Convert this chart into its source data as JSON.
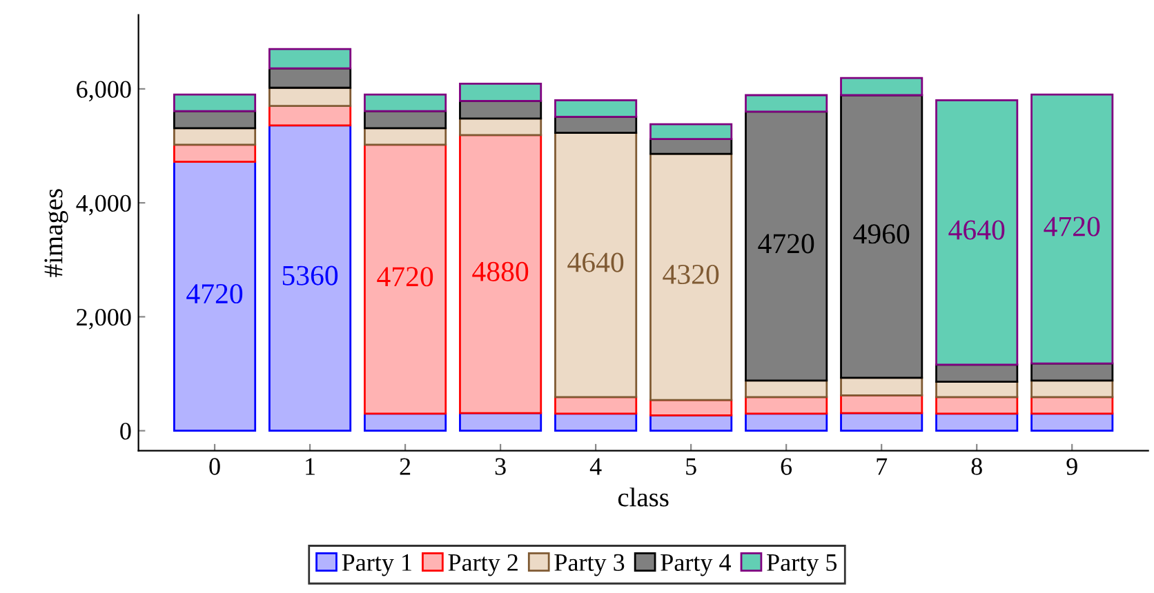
{
  "chart_data": {
    "type": "bar",
    "stacked": true,
    "xlabel": "class",
    "ylabel": "#images",
    "categories": [
      "0",
      "1",
      "2",
      "3",
      "4",
      "5",
      "6",
      "7",
      "8",
      "9"
    ],
    "ylim": [
      -350,
      7300
    ],
    "yticks": [
      {
        "value": 0,
        "label": "0"
      },
      {
        "value": 2000,
        "label": "2,000"
      },
      {
        "value": 4000,
        "label": "4,000"
      },
      {
        "value": 6000,
        "label": "6,000"
      }
    ],
    "grid": false,
    "legend": "bottom",
    "series": [
      {
        "name": "Party 1",
        "color": "#b3b3ff",
        "values": [
          4720,
          5360,
          300,
          310,
          300,
          270,
          300,
          310,
          300,
          300
        ],
        "value_labels": [
          "4720",
          "5360",
          null,
          null,
          null,
          null,
          null,
          null,
          null,
          null
        ]
      },
      {
        "name": "Party 2",
        "color": "#ffb3b3",
        "values": [
          300,
          340,
          4720,
          4880,
          290,
          270,
          290,
          310,
          290,
          290
        ],
        "value_labels": [
          null,
          null,
          "4720",
          "4880",
          null,
          null,
          null,
          null,
          null,
          null
        ]
      },
      {
        "name": "Party 3",
        "color": "#ecdac6",
        "values": [
          290,
          320,
          290,
          290,
          4640,
          4320,
          290,
          310,
          270,
          290
        ],
        "value_labels": [
          null,
          null,
          null,
          null,
          "4640",
          "4320",
          null,
          null,
          null,
          null
        ]
      },
      {
        "name": "Party 4",
        "color": "#808080",
        "values": [
          300,
          340,
          300,
          310,
          280,
          260,
          4720,
          4960,
          300,
          300
        ],
        "value_labels": [
          null,
          null,
          null,
          null,
          null,
          null,
          "4720",
          "4960",
          null,
          null
        ]
      },
      {
        "name": "Party 5",
        "color": "#62cfb4",
        "values": [
          290,
          340,
          290,
          300,
          290,
          260,
          290,
          300,
          4640,
          4720
        ],
        "value_labels": [
          null,
          null,
          null,
          null,
          null,
          null,
          null,
          null,
          "4640",
          "4720"
        ]
      }
    ]
  }
}
